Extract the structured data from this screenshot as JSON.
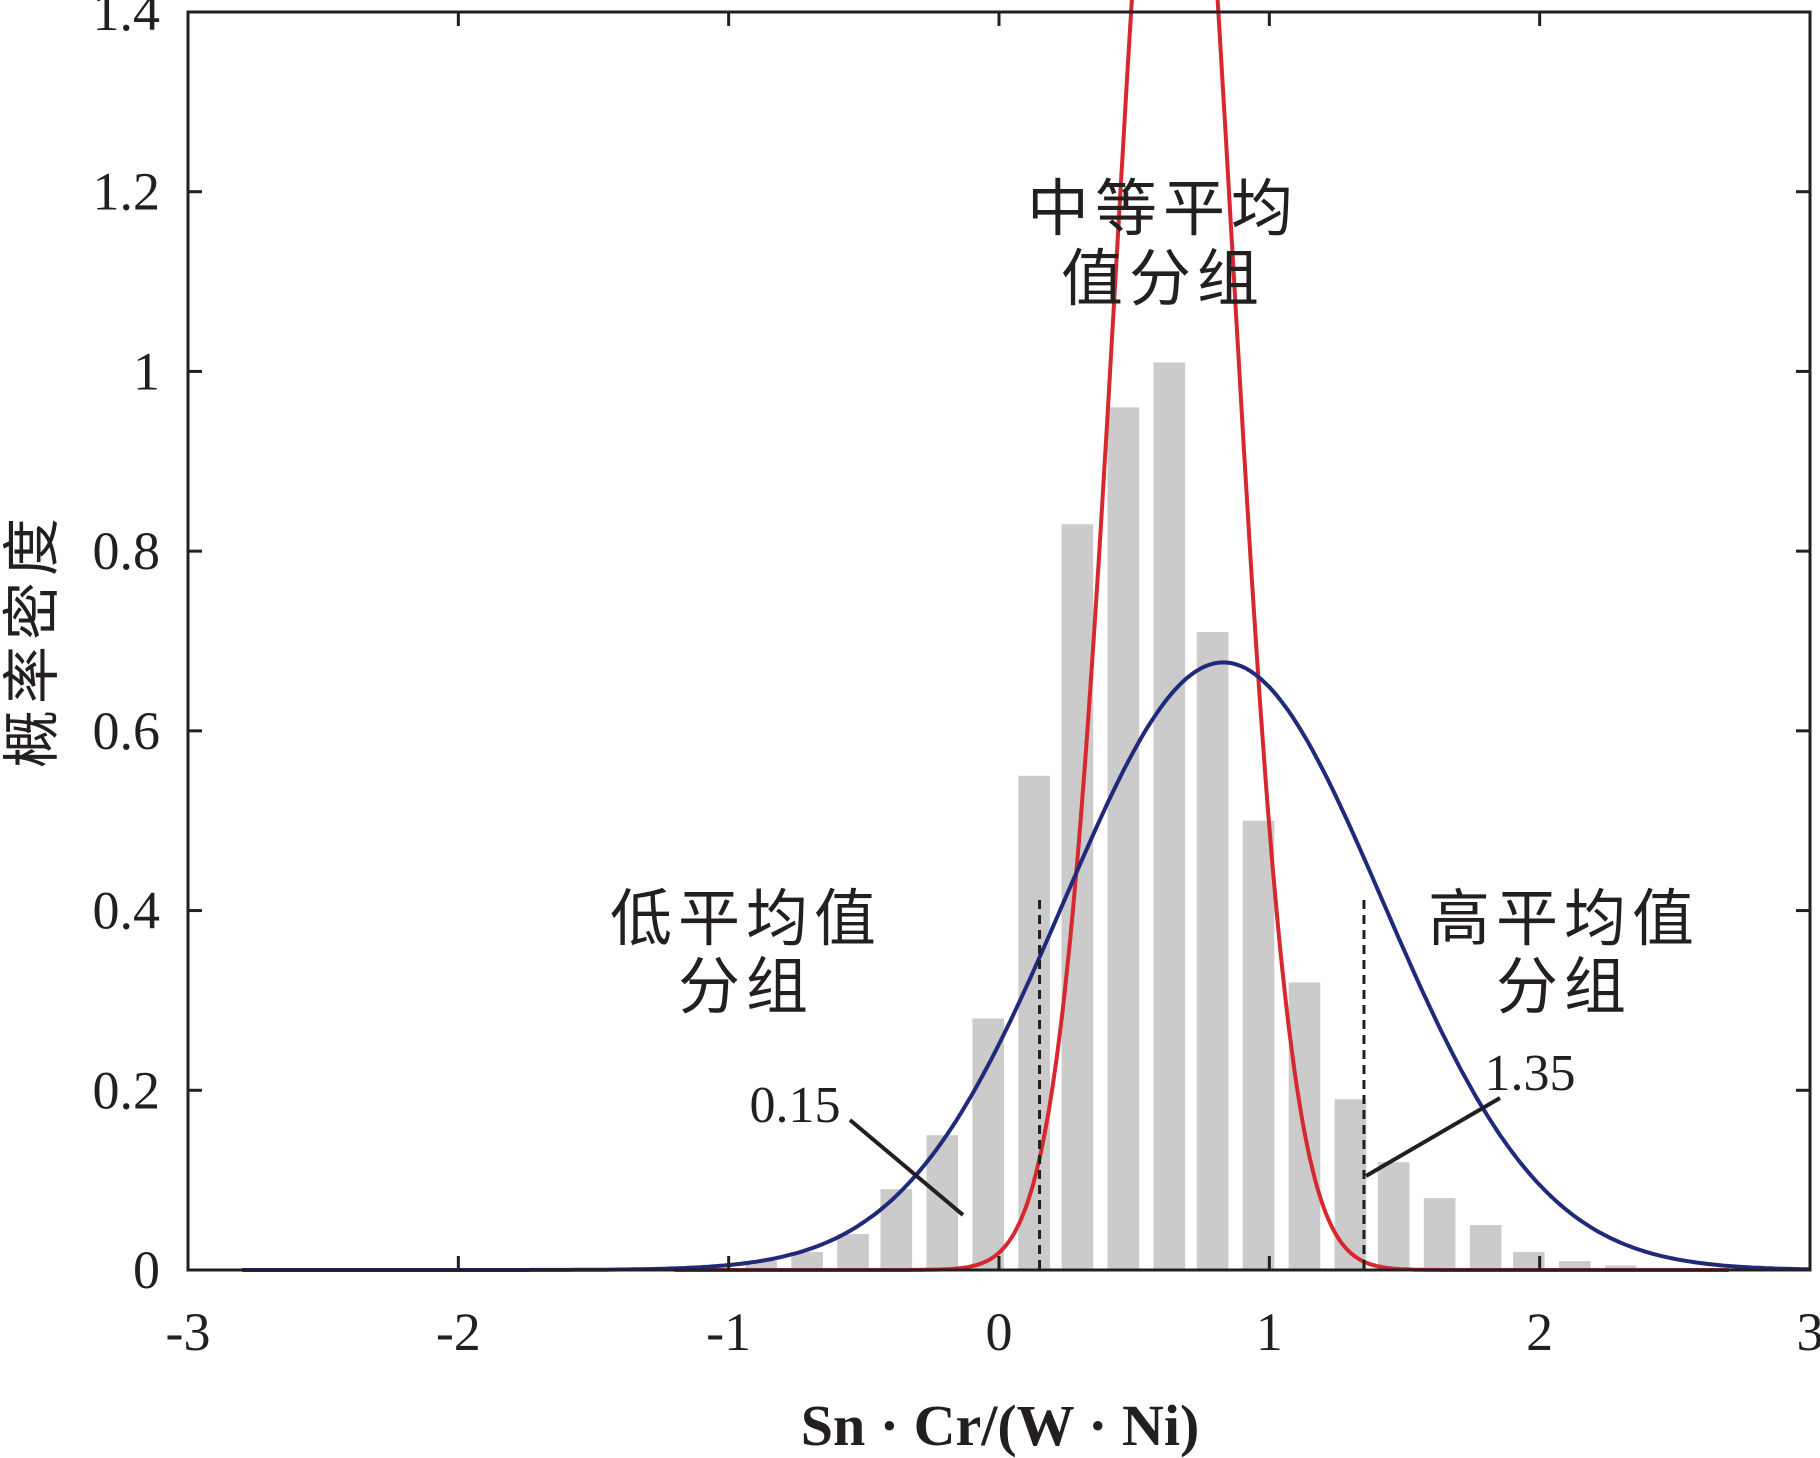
{
  "chart_data": {
    "type": "bar",
    "xlabel": "Sn · Cr/(W · Ni)",
    "ylabel": "概率密度",
    "xlim": [
      -3,
      3
    ],
    "ylim": [
      0,
      1.4
    ],
    "xticks": [
      -3,
      -2,
      -1,
      0,
      1,
      2,
      3
    ],
    "xtick_labels": [
      "-3",
      "-2",
      "-1",
      "0",
      "1",
      "2",
      "3"
    ],
    "yticks": [
      0,
      0.2,
      0.4,
      0.6,
      0.8,
      1.0,
      1.2,
      1.4
    ],
    "ytick_labels": [
      "0",
      "0.2",
      "0.4",
      "0.6",
      "0.8",
      "1",
      "1.2",
      "1.4"
    ],
    "grid": false,
    "histogram": {
      "bin_width": 0.167,
      "bin_centers": [
        -0.88,
        -0.71,
        -0.54,
        -0.38,
        -0.21,
        -0.04,
        0.13,
        0.29,
        0.46,
        0.63,
        0.79,
        0.96,
        1.13,
        1.3,
        1.46,
        1.63,
        1.8,
        1.96,
        2.13,
        2.3
      ],
      "values": [
        0.01,
        0.02,
        0.04,
        0.09,
        0.15,
        0.28,
        0.55,
        0.83,
        0.96,
        1.01,
        0.71,
        0.5,
        0.32,
        0.19,
        0.12,
        0.08,
        0.05,
        0.02,
        0.01,
        0.005
      ],
      "color": "#cbcbcb"
    },
    "series": [
      {
        "type": "normal_curve",
        "mean": 0.65,
        "sd": 0.215,
        "x_range": [
          -1.2,
          2.7
        ],
        "color": "#d7282f"
      },
      {
        "type": "normal_curve",
        "mean": 0.83,
        "sd": 0.59,
        "x_range": [
          -2.8,
          3.0
        ],
        "color": "#1f2a7a"
      }
    ],
    "thresholds": [
      {
        "x": 0.15,
        "label": "0.15"
      },
      {
        "x": 1.35,
        "label": "1.35"
      }
    ],
    "annotations": {
      "low_group": [
        "低平均值",
        "分组"
      ],
      "mid_group": [
        "中等平均",
        "值分组"
      ],
      "high_group": [
        "高平均值",
        "分组"
      ]
    }
  }
}
